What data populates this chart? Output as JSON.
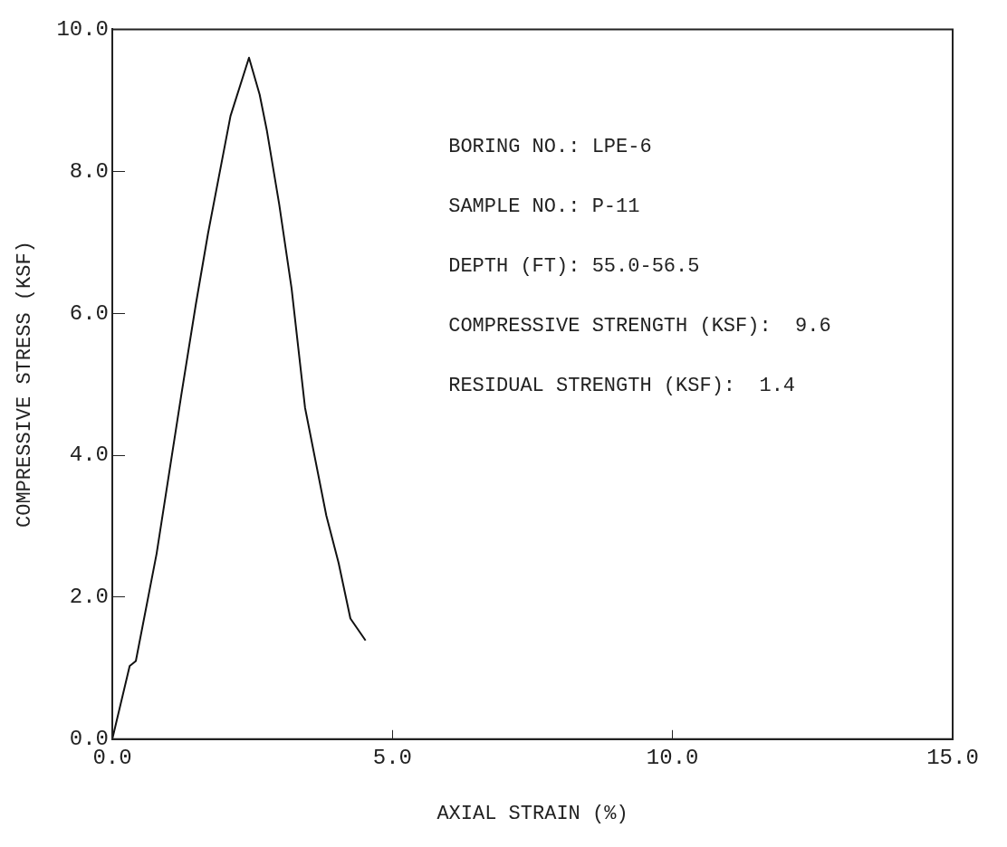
{
  "chart_data": {
    "type": "line",
    "xlabel": "AXIAL STRAIN (%)",
    "ylabel": "COMPRESSIVE STRESS (KSF)",
    "x": [
      0,
      0.31,
      0.42,
      0.79,
      1.23,
      1.49,
      1.71,
      2.11,
      2.44,
      2.63,
      2.76,
      2.98,
      3.2,
      3.44,
      3.82,
      4.04,
      4.25,
      4.52
    ],
    "series": [
      {
        "color": "#111111",
        "values": [
          0,
          1.03,
          1.1,
          2.61,
          4.84,
          6.12,
          7.13,
          8.78,
          9.6,
          9.08,
          8.57,
          7.53,
          6.35,
          4.67,
          3.15,
          2.48,
          1.7,
          1.39
        ]
      }
    ],
    "xlim": [
      0,
      15
    ],
    "xticks": [
      {
        "value": 0,
        "label": "0.0"
      },
      {
        "value": 5,
        "label": "5.0"
      },
      {
        "value": 10,
        "label": "10.0"
      },
      {
        "value": 15,
        "label": "15.0"
      }
    ],
    "ylim": [
      0,
      10
    ],
    "yticks": [
      {
        "value": 0,
        "label": "0.0"
      },
      {
        "value": 2,
        "label": "2.0"
      },
      {
        "value": 4,
        "label": "4.0"
      },
      {
        "value": 6,
        "label": "6.0"
      },
      {
        "value": 8,
        "label": "8.0"
      },
      {
        "value": 10,
        "label": "10.0"
      }
    ],
    "grid": false,
    "legend": false,
    "marker": "none",
    "line_style": "solid",
    "annotations": [
      "BORING NO.: LPE-6",
      "SAMPLE NO.: P-11",
      "DEPTH (FT): 55.0-56.5",
      "COMPRESSIVE STRENGTH (KSF):  9.6",
      "RESIDUAL STRENGTH (KSF):  1.4"
    ]
  }
}
